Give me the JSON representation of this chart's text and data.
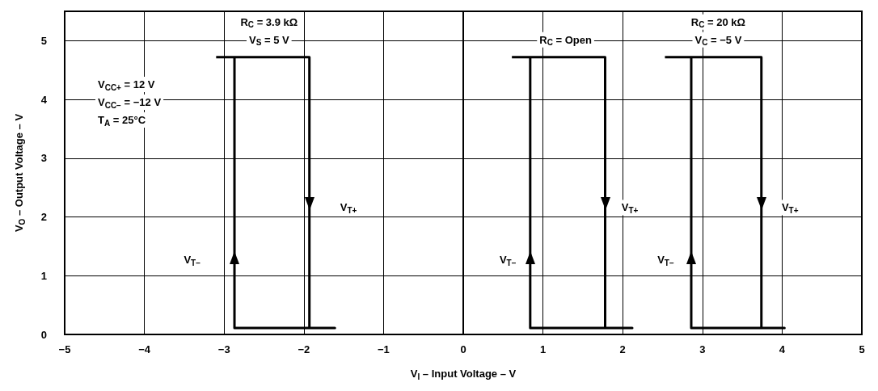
{
  "chart_data": {
    "type": "line",
    "xlabel": "V$_{I}$ – Input Voltage – V",
    "ylabel": "V$_{O}$ – Output Voltage – V",
    "xlim": [
      -5,
      5
    ],
    "xticks": [
      -5,
      -4,
      -3,
      -2,
      -1,
      0,
      1,
      2,
      3,
      4,
      5
    ],
    "ylim": [
      0,
      5.5
    ],
    "yticks": [
      0,
      1,
      2,
      3,
      4,
      5
    ],
    "grid": true,
    "marker": "none",
    "line_style": "solid",
    "series": [
      {
        "name": "R$_{C}$ = 3.9 kΩ\nV$_{S}$ = 5 V",
        "color": "#000000",
        "x": [
          -3.1,
          -1.93,
          -1.93,
          -1.61,
          -2.87,
          -2.87
        ],
        "values": [
          4.72,
          4.72,
          0.11,
          0.11,
          0.11,
          4.72
        ]
      },
      {
        "name": "R$_{C}$ = Open",
        "color": "#000000",
        "x": [
          0.61,
          1.78,
          1.78,
          2.12,
          0.84,
          0.84
        ],
        "values": [
          4.72,
          4.72,
          0.11,
          0.11,
          0.11,
          4.72
        ]
      },
      {
        "name": "R$_{C}$ = 20 kΩ\nV$_{C}$ = −5 V",
        "color": "#000000",
        "x": [
          2.53,
          3.74,
          3.74,
          4.03,
          2.86,
          2.86
        ],
        "values": [
          4.72,
          4.72,
          0.11,
          0.11,
          0.11,
          4.72
        ]
      }
    ],
    "annotations": [
      "V$_{CC+}$ = 12 V",
      "V$_{CC−}$ = −12 V",
      "T$_{A}$ = 25°C",
      {
        "text": "V$_{T−}$",
        "x": -3.4,
        "y": 1.27
      },
      {
        "text": "V$_{T+}$",
        "x": -1.44,
        "y": 2.16
      },
      {
        "text": "V$_{T−}$",
        "x": 0.56,
        "y": 1.27
      },
      {
        "text": "V$_{T+}$",
        "x": 2.09,
        "y": 2.16
      },
      {
        "text": "V$_{T−}$",
        "x": 2.54,
        "y": 1.27
      },
      {
        "text": "V$_{T+}$",
        "x": 4.1,
        "y": 2.16
      }
    ]
  }
}
